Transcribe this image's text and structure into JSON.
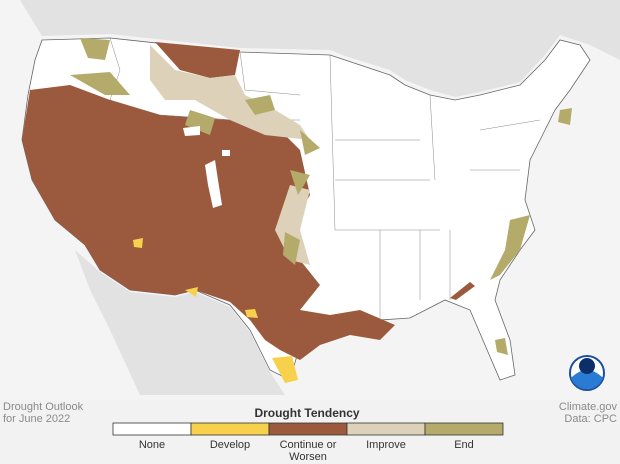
{
  "caption": {
    "title": "Drought Outlook",
    "subtitle": "for June 2022"
  },
  "credit": {
    "source": "Climate.gov",
    "data": "Data: CPC"
  },
  "legend": {
    "title": "Drought Tendency",
    "items": [
      {
        "label": "None",
        "color": "#ffffff"
      },
      {
        "label": "Develop",
        "color": "#f7d04c"
      },
      {
        "label": "Continue or Worsen",
        "color": "#9b5a3e"
      },
      {
        "label": "Improve",
        "color": "#ddd1b9"
      },
      {
        "label": "End",
        "color": "#b4ab6b"
      }
    ]
  }
}
